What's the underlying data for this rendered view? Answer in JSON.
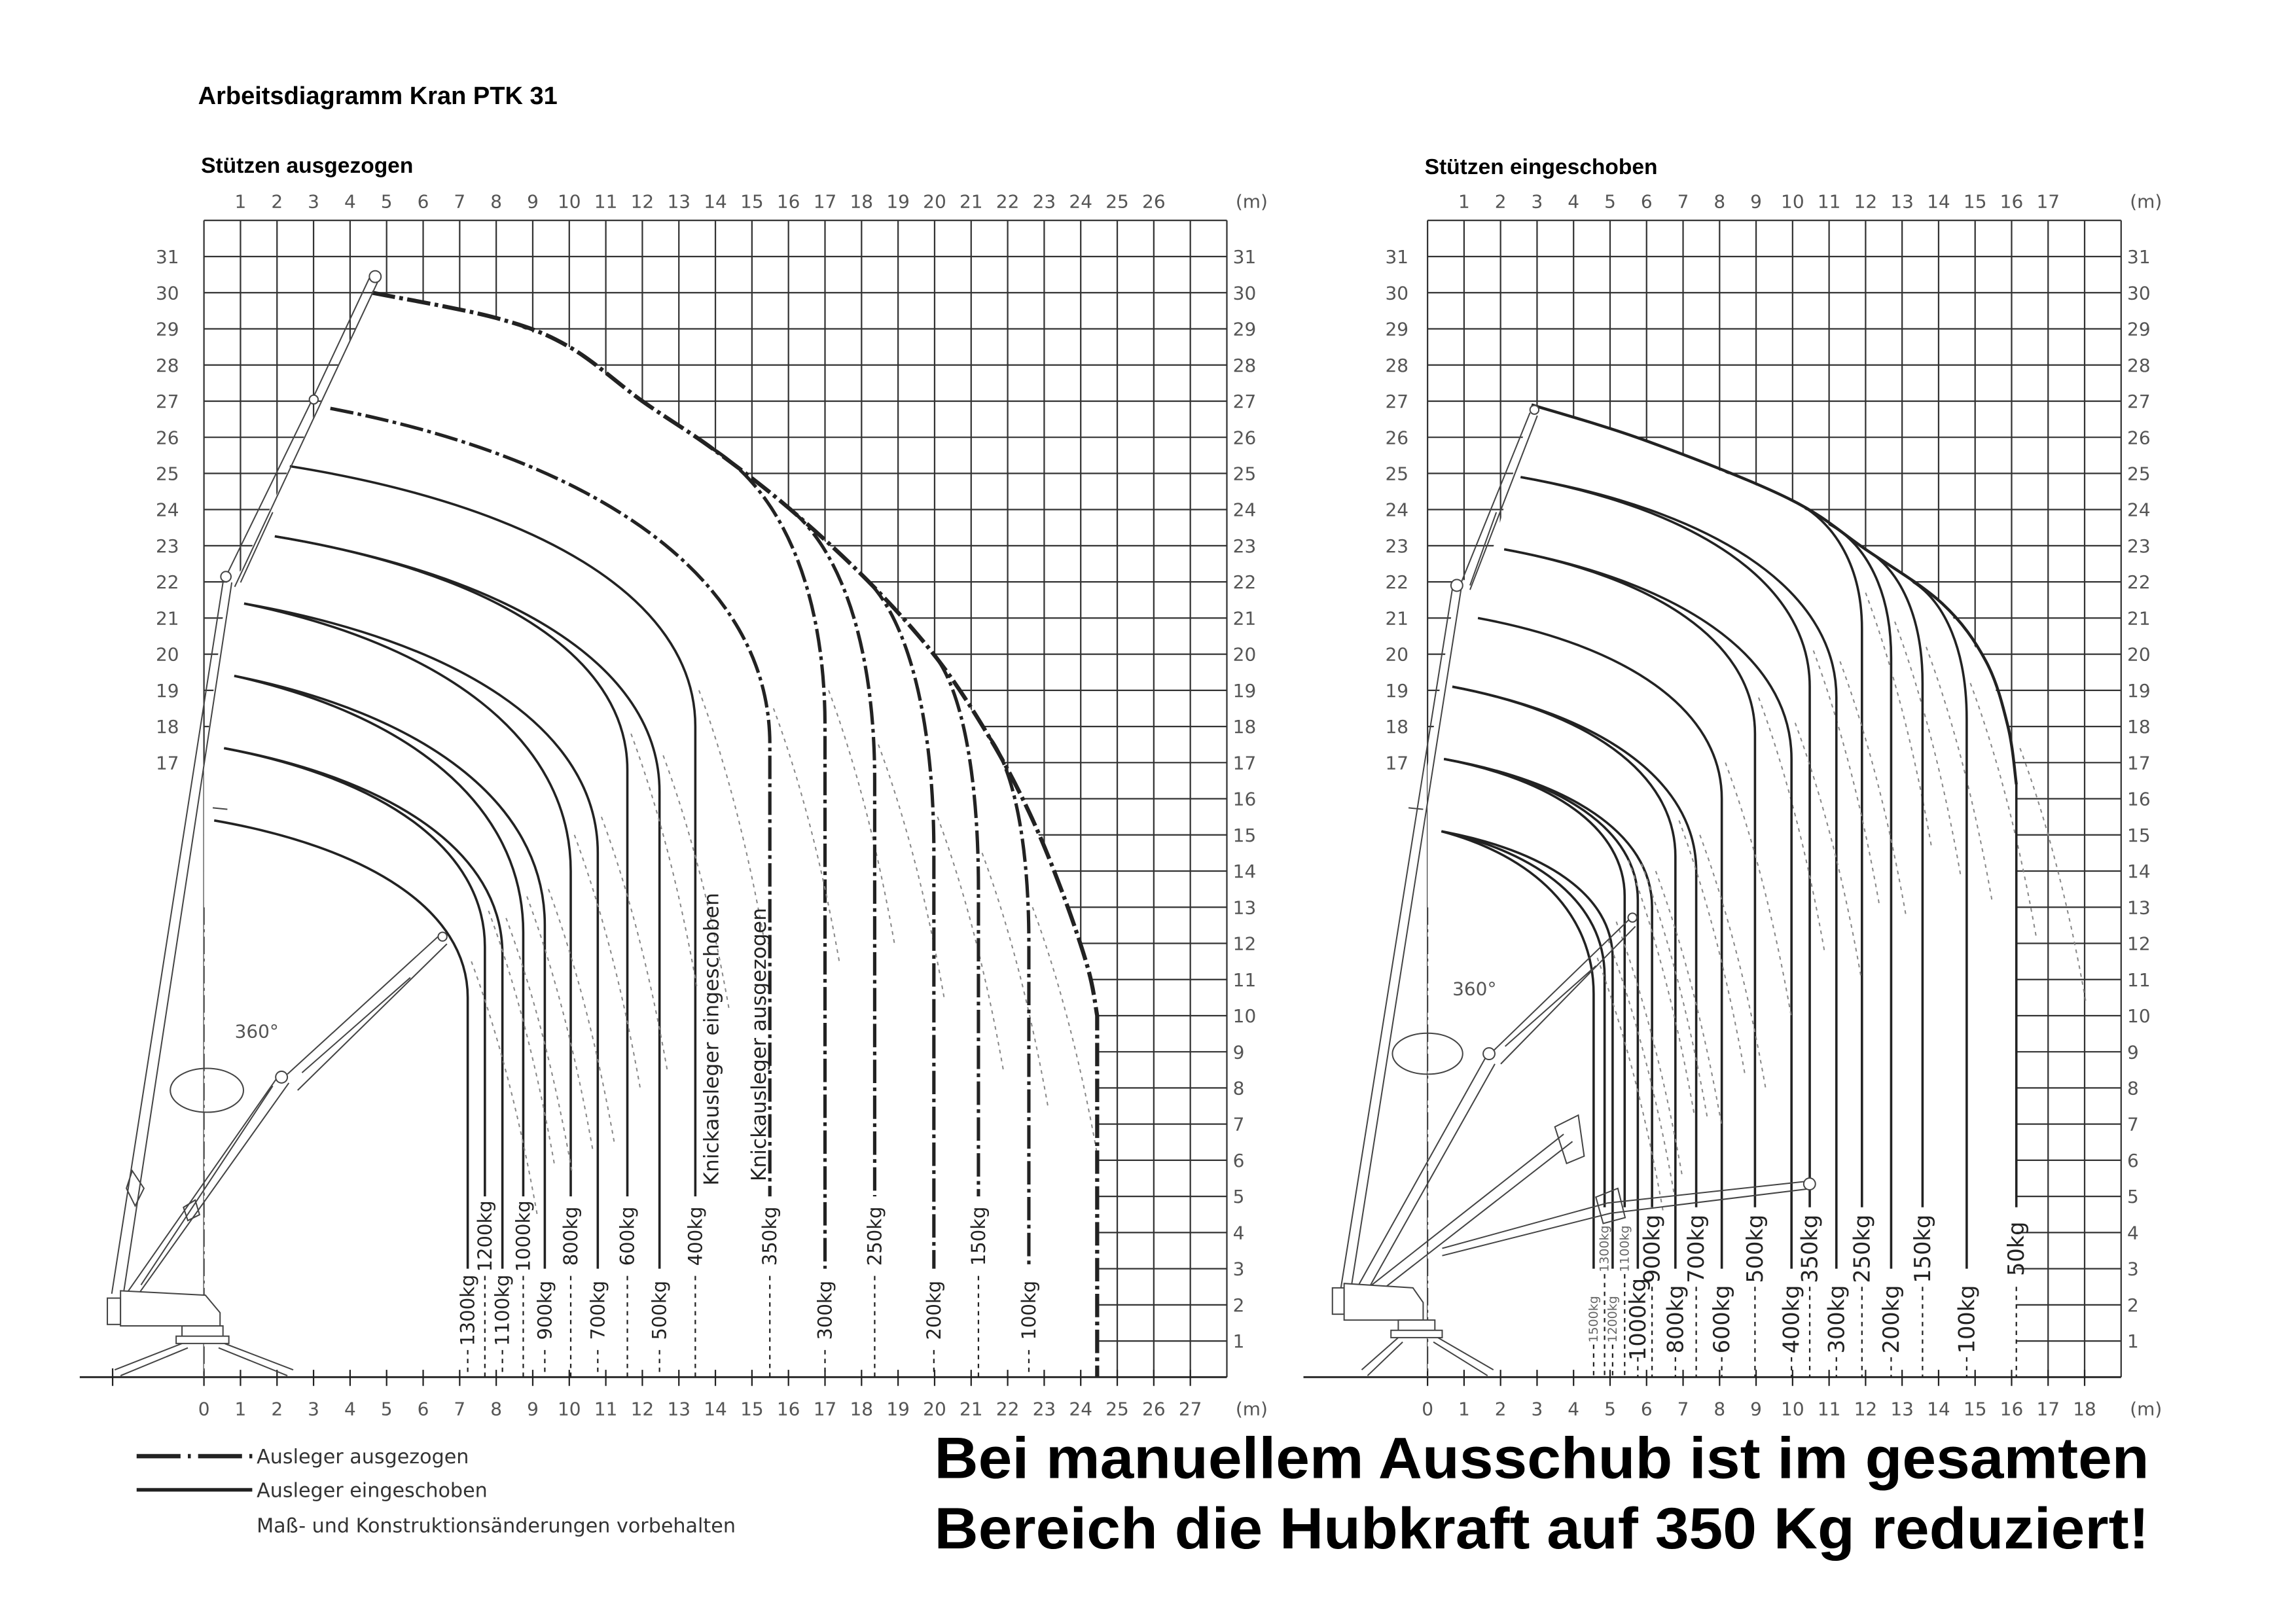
{
  "title": "Arbeitsdiagramm Kran PTK 31",
  "charts": [
    {
      "subtitle": "Stützen ausgezogen",
      "unit": "(m)",
      "rotation": "360°",
      "x_ticks_top": [
        1,
        2,
        3,
        4,
        5,
        6,
        7,
        8,
        9,
        10,
        11,
        12,
        13,
        14,
        15,
        16,
        17,
        18,
        19,
        20,
        21,
        22,
        23,
        24,
        25,
        26
      ],
      "x_ticks_bottom": [
        0,
        1,
        2,
        3,
        4,
        5,
        6,
        7,
        8,
        9,
        10,
        11,
        12,
        13,
        14,
        15,
        16,
        17,
        18,
        19,
        20,
        21,
        22,
        23,
        24,
        25,
        26,
        27
      ],
      "y_ticks_left": [
        17,
        18,
        19,
        20,
        21,
        22,
        23,
        24,
        25,
        26,
        27,
        28,
        29,
        30,
        31
      ],
      "y_ticks_right": [
        1,
        2,
        3,
        4,
        5,
        6,
        7,
        8,
        9,
        10,
        11,
        12,
        13,
        14,
        15,
        16,
        17,
        18,
        19,
        20,
        21,
        22,
        23,
        24,
        25,
        26,
        27,
        28,
        29,
        30,
        31
      ],
      "envelope": {
        "style": "dash-dot",
        "points": [
          [
            4.6,
            30.0
          ],
          [
            8,
            29.3
          ],
          [
            10,
            28.5
          ],
          [
            12,
            27.0
          ],
          [
            13.9,
            25.7
          ],
          [
            16,
            24.05
          ],
          [
            18.2,
            22.0
          ],
          [
            20.05,
            19.9
          ],
          [
            21.5,
            17.7
          ],
          [
            22.6,
            15.6
          ],
          [
            23.5,
            13.4
          ],
          [
            24.2,
            11.3
          ],
          [
            24.45,
            10.0
          ]
        ],
        "vertical_to": 0,
        "load": null
      },
      "curves": [
        {
          "from": [
            13.9,
            25.7
          ],
          "style": "dash-dot",
          "loads": [
            {
              "label": "300kg",
              "radius": 17.0,
              "bend": 18.0
            }
          ]
        },
        {
          "from": [
            16.0,
            24.05
          ],
          "style": "dash-dot",
          "loads": [
            {
              "label": "250kg",
              "radius": 18.36,
              "bend": 16.5
            }
          ]
        },
        {
          "from": [
            18.2,
            22.0
          ],
          "style": "dash-dot",
          "loads": [
            {
              "label": "200kg",
              "radius": 19.98,
              "bend": 14.5
            }
          ]
        },
        {
          "from": [
            20.05,
            19.9
          ],
          "style": "dash-dot",
          "loads": [
            {
              "label": "150kg",
              "radius": 21.2,
              "bend": 13.5
            }
          ]
        },
        {
          "from": [
            21.5,
            17.7
          ],
          "style": "dash-dot",
          "loads": [
            {
              "label": "100kg",
              "radius": 22.58,
              "bend": 12.0
            }
          ]
        },
        {
          "from": [
            3.46,
            26.8
          ],
          "style": "dash-dot",
          "loads": [
            {
              "label": "350kg",
              "radius": 15.49,
              "bend": 17.5
            }
          ]
        },
        {
          "from": [
            2.35,
            25.2
          ],
          "style": "solid",
          "loads": [
            {
              "label": "400kg",
              "radius": 13.45,
              "bend": 18.0
            }
          ]
        },
        {
          "from": [
            1.94,
            23.26
          ],
          "style": "solid",
          "loads": [
            {
              "label": "500kg",
              "radius": 12.47,
              "bend": 16.2
            },
            {
              "label": "600kg",
              "radius": 11.59,
              "bend": 16.8
            }
          ]
        },
        {
          "from": [
            1.1,
            21.4
          ],
          "style": "solid",
          "loads": [
            {
              "label": "700kg",
              "radius": 10.78,
              "bend": 14.5
            },
            {
              "label": "800kg",
              "radius": 10.04,
              "bend": 14.0
            }
          ]
        },
        {
          "from": [
            0.83,
            19.4
          ],
          "style": "solid",
          "loads": [
            {
              "label": "900kg",
              "radius": 9.33,
              "bend": 12.5
            },
            {
              "label": "1000kg",
              "radius": 8.74,
              "bend": 12.3
            }
          ]
        },
        {
          "from": [
            0.55,
            17.4
          ],
          "style": "solid",
          "loads": [
            {
              "label": "1100kg",
              "radius": 8.17,
              "bend": 11.7
            },
            {
              "label": "1200kg",
              "radius": 7.69,
              "bend": 11.9
            }
          ]
        },
        {
          "from": [
            0.28,
            15.4
          ],
          "style": "solid",
          "loads": [
            {
              "label": "1300kg",
              "radius": 7.22,
              "bend": 10.5
            }
          ]
        }
      ],
      "annotations": [
        "Knickausleger eingeschoben",
        "Knickausleger ausgezogen"
      ]
    },
    {
      "subtitle": "Stützen eingeschoben",
      "unit": "(m)",
      "rotation": "360°",
      "x_ticks_top": [
        1,
        2,
        3,
        4,
        5,
        6,
        7,
        8,
        9,
        10,
        11,
        12,
        13,
        14,
        15,
        16,
        17
      ],
      "x_ticks_bottom": [
        0,
        1,
        2,
        3,
        4,
        5,
        6,
        7,
        8,
        9,
        10,
        11,
        12,
        13,
        14,
        15,
        16,
        17,
        18
      ],
      "y_ticks_left": [
        17,
        18,
        19,
        20,
        21,
        22,
        23,
        24,
        25,
        26,
        27,
        28,
        29,
        30,
        31
      ],
      "y_ticks_right": [
        1,
        2,
        3,
        4,
        5,
        6,
        7,
        8,
        9,
        10,
        11,
        12,
        13,
        14,
        15,
        16,
        17,
        18,
        19,
        20,
        21,
        22,
        23,
        24,
        25,
        26,
        27,
        28,
        29,
        30,
        31
      ],
      "envelope": {
        "style": "solid",
        "points": [
          [
            2.85,
            26.9
          ],
          [
            6,
            25.9
          ],
          [
            9.9,
            24.3
          ],
          [
            12.0,
            22.9
          ],
          [
            14.1,
            21.4
          ],
          [
            15.3,
            19.8
          ],
          [
            15.9,
            18.0
          ],
          [
            16.13,
            16.4
          ]
        ],
        "vertical_to": 4.7,
        "load": "50kg"
      },
      "curves": [
        {
          "from": [
            9.9,
            24.3
          ],
          "style": "solid",
          "loads": [
            {
              "label": "250kg",
              "radius": 11.9,
              "bend": 20.7
            }
          ]
        },
        {
          "from": [
            11.0,
            23.6
          ],
          "style": "solid",
          "loads": [
            {
              "label": "200kg",
              "radius": 12.7,
              "bend": 19.9
            }
          ]
        },
        {
          "from": [
            12.0,
            22.9
          ],
          "style": "solid",
          "loads": [
            {
              "label": "150kg",
              "radius": 13.56,
              "bend": 19.2
            }
          ]
        },
        {
          "from": [
            13.3,
            22.0
          ],
          "style": "solid",
          "loads": [
            {
              "label": "100kg",
              "radius": 14.77,
              "bend": 18.2
            }
          ]
        },
        {
          "from": [
            2.55,
            24.9
          ],
          "style": "solid",
          "loads": [
            {
              "label": "350kg",
              "radius": 10.47,
              "bend": 19.1
            },
            {
              "label": "300kg",
              "radius": 11.2,
              "bend": 18.8
            }
          ]
        },
        {
          "from": [
            2.1,
            22.9
          ],
          "style": "solid",
          "loads": [
            {
              "label": "500kg",
              "radius": 8.97,
              "bend": 17.8
            },
            {
              "label": "400kg",
              "radius": 9.97,
              "bend": 17.1
            }
          ]
        },
        {
          "from": [
            1.38,
            21.0
          ],
          "style": "solid",
          "loads": [
            {
              "label": "600kg",
              "radius": 8.06,
              "bend": 16.0
            }
          ]
        },
        {
          "from": [
            0.68,
            19.1
          ],
          "style": "solid",
          "loads": [
            {
              "label": "700kg",
              "radius": 7.36,
              "bend": 14.0
            },
            {
              "label": "800kg",
              "radius": 6.79,
              "bend": 14.4
            }
          ]
        },
        {
          "from": [
            0.45,
            17.1
          ],
          "style": "solid",
          "loads": [
            {
              "label": "900kg",
              "radius": 6.15,
              "bend": 13.0
            },
            {
              "label": "1000kg",
              "radius": 5.76,
              "bend": 13.2
            },
            {
              "label": "1100kg",
              "radius": 5.4,
              "bend": 13.3
            }
          ]
        },
        {
          "from": [
            0.38,
            15.1
          ],
          "style": "solid",
          "loads": [
            {
              "label": "1200kg",
              "radius": 5.07,
              "bend": 11.6
            },
            {
              "label": "1300kg",
              "radius": 4.85,
              "bend": 11.1
            },
            {
              "label": "1500kg",
              "radius": 4.55,
              "bend": 10.6
            }
          ]
        }
      ],
      "annotations": []
    }
  ],
  "legend": [
    {
      "style": "dash-dot",
      "label": "Ausleger ausgezogen"
    },
    {
      "style": "solid",
      "label": "Ausleger eingeschoben"
    }
  ],
  "disclaimer": "Maß- und Konstruktionsänderungen vorbehalten",
  "notice": [
    "Bei manuellem Ausschub ist im gesamten",
    "Bereich die Hubkraft auf 350 Kg reduziert!"
  ]
}
